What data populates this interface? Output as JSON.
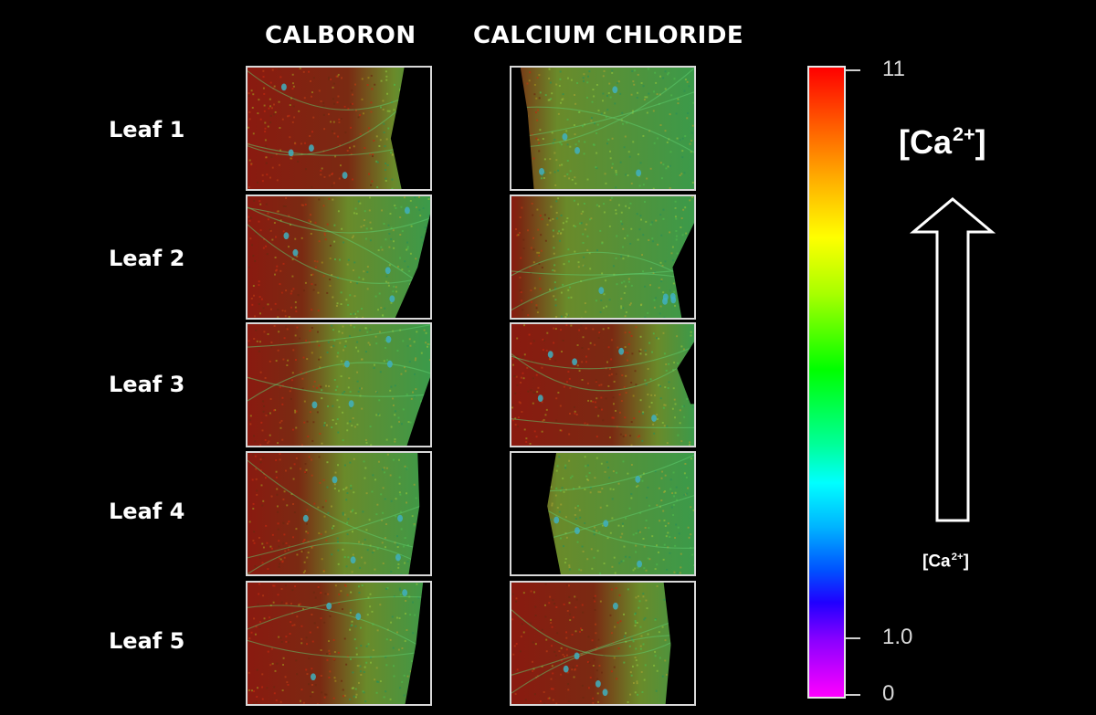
{
  "columns": [
    "CALBORON",
    "CALCIUM CHLORIDE"
  ],
  "rows": [
    "Leaf 1",
    "Leaf 2",
    "Leaf 3",
    "Leaf 4",
    "Leaf 5"
  ],
  "scale": {
    "max_label": "11",
    "mid_label": "1.0",
    "min_label": "0",
    "colors": [
      "#ff0000",
      "#ffff00",
      "#00ff00",
      "#00ffff",
      "#0050ff",
      "#ff00ff"
    ]
  },
  "indicator": {
    "big_prefix": "[Ca",
    "big_sup": "2+",
    "big_suffix": "]",
    "small_prefix": "[Ca",
    "small_sup": "2+",
    "small_suffix": "]"
  }
}
